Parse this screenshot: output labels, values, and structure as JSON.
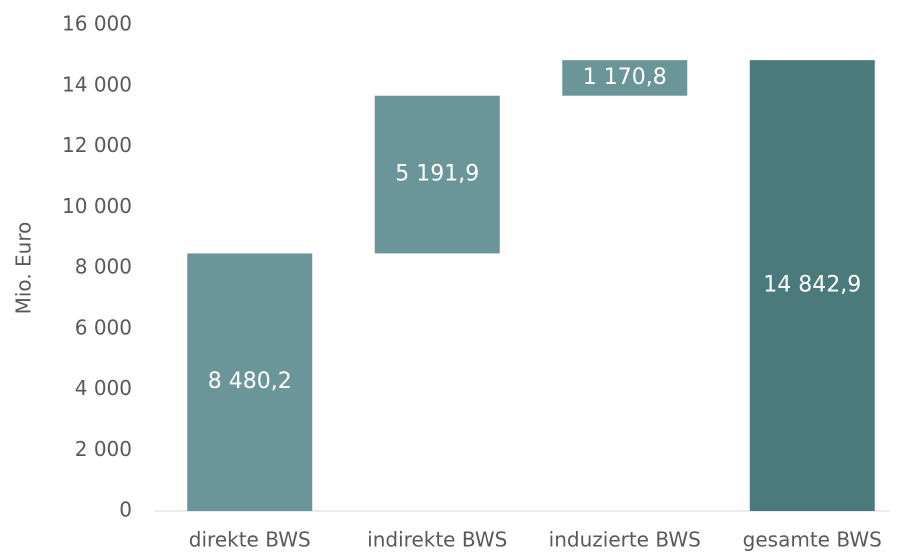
{
  "chart_data": {
    "type": "waterfall",
    "categories": [
      "direkte BWS",
      "indirekte BWS",
      "induzierte BWS",
      "gesamte BWS"
    ],
    "values": [
      8480.2,
      5191.9,
      1170.8,
      14842.9
    ],
    "value_labels": [
      "8 480,2",
      "5 191,9",
      "1 170,8",
      "14 842,9"
    ],
    "measure": [
      "relative",
      "relative",
      "relative",
      "total"
    ],
    "colors": [
      "#6b9699",
      "#6b9699",
      "#6b9699",
      "#4a7a7b"
    ],
    "ylabel": "Mio. Euro",
    "ylim": [
      0,
      16000
    ],
    "yticks": [
      0,
      {
        "value": 2000,
        "label": "2 000"
      },
      {
        "value": 4000,
        "label": "4 000"
      },
      {
        "value": 6000,
        "label": "6 000"
      },
      {
        "value": 8000,
        "label": "8 000"
      },
      {
        "value": 10000,
        "label": "10 000"
      },
      {
        "value": 12000,
        "label": "12 000"
      },
      {
        "value": 14000,
        "label": "14 000"
      },
      {
        "value": 16000,
        "label": "16 000"
      }
    ],
    "grid": false
  }
}
